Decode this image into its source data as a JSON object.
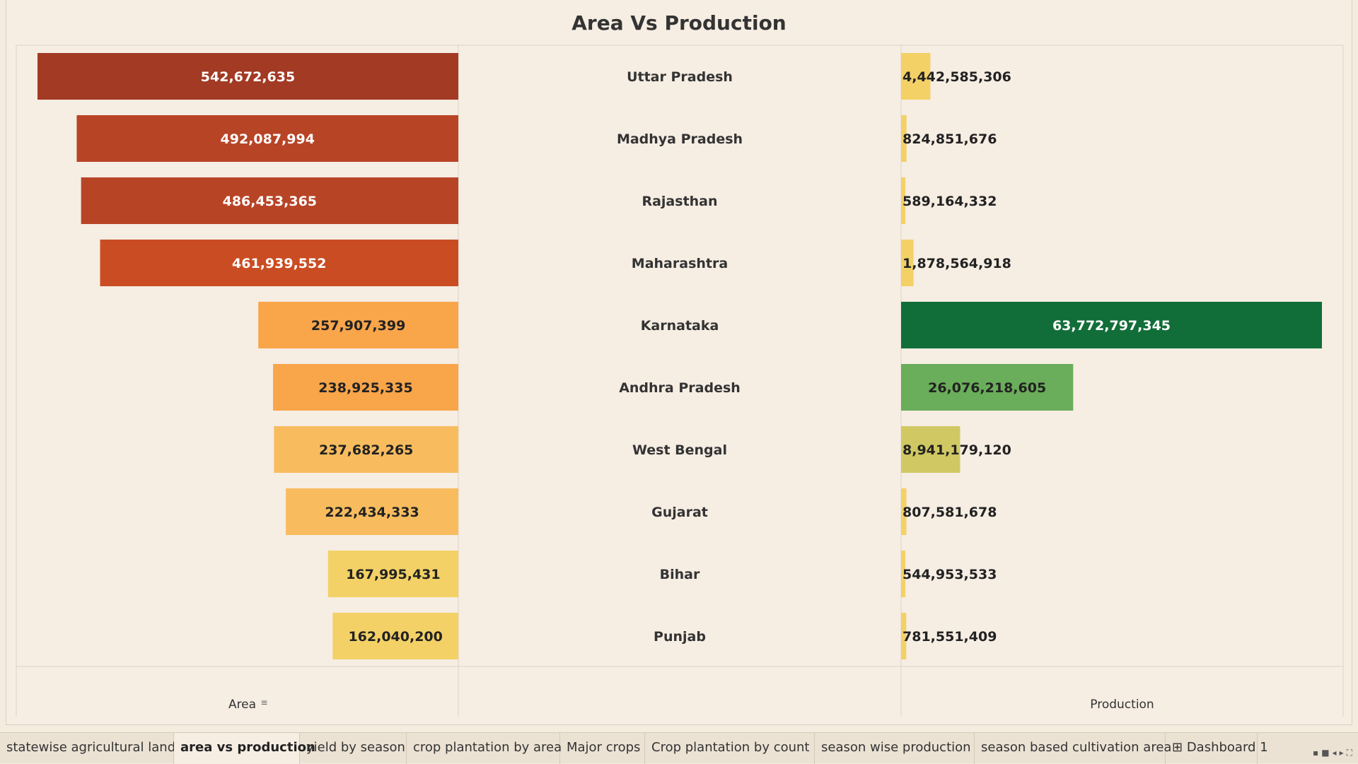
{
  "title": "Area Vs Production",
  "chart_data": {
    "type": "bar",
    "title": "Area Vs Production",
    "categories": [
      "Uttar Pradesh",
      "Madhya Pradesh",
      "Rajasthan",
      "Maharashtra",
      "Karnataka",
      "Andhra Pradesh",
      "West Bengal",
      "Gujarat",
      "Bihar",
      "Punjab"
    ],
    "series": [
      {
        "name": "Area",
        "values": [
          542672635,
          492087994,
          486453365,
          461939552,
          257907399,
          238925335,
          237682265,
          222434333,
          167995431,
          162040200
        ],
        "labels": [
          "542,672,635",
          "492,087,994",
          "486,453,365",
          "461,939,552",
          "257,907,399",
          "238,925,335",
          "237,682,265",
          "222,434,333",
          "167,995,431",
          "162,040,200"
        ],
        "colors": [
          "#a23a24",
          "#b84426",
          "#b84426",
          "#ca4c23",
          "#f9a54a",
          "#f9a54a",
          "#f8bc5e",
          "#f8bc5e",
          "#f3d166",
          "#f3d166"
        ],
        "label_colors": [
          "#ffffff",
          "#ffffff",
          "#ffffff",
          "#ffffff",
          "#222222",
          "#222222",
          "#222222",
          "#222222",
          "#222222",
          "#222222"
        ]
      },
      {
        "name": "Production",
        "values": [
          4442585306,
          824851676,
          589164332,
          1878564918,
          63772797345,
          26076218605,
          8941179120,
          807581678,
          544953533,
          781551409
        ],
        "labels": [
          "4,442,585,306",
          "824,851,676",
          "589,164,332",
          "1,878,564,918",
          "63,772,797,345",
          "26,076,218,605",
          "8,941,179,120",
          "807,581,678",
          "544,953,533",
          "781,551,409"
        ],
        "colors": [
          "#f3d166",
          "#f3d166",
          "#f3d166",
          "#f3d166",
          "#126e39",
          "#6aad5a",
          "#d0c862",
          "#f3d166",
          "#f3d166",
          "#f3d166"
        ],
        "label_colors": [
          "#222222",
          "#222222",
          "#222222",
          "#222222",
          "#ffffff",
          "#222222",
          "#222222",
          "#222222",
          "#222222",
          "#222222"
        ]
      }
    ],
    "xlabel_left": "Area",
    "xlabel_right": "Production",
    "area_sort_icon": "sort-descending-icon"
  },
  "tabs": [
    {
      "label": "statewise agricultural land",
      "active": false
    },
    {
      "label": "area vs production",
      "active": true
    },
    {
      "label": "yield by season",
      "active": false
    },
    {
      "label": "crop plantation by area",
      "active": false
    },
    {
      "label": "Major crops",
      "active": false
    },
    {
      "label": "Crop plantation by count",
      "active": false
    },
    {
      "label": "season wise production",
      "active": false
    },
    {
      "label": "season based cultivation area",
      "active": false
    },
    {
      "label": "Dashboard 1",
      "active": false,
      "icon": "dashboard-icon"
    }
  ]
}
